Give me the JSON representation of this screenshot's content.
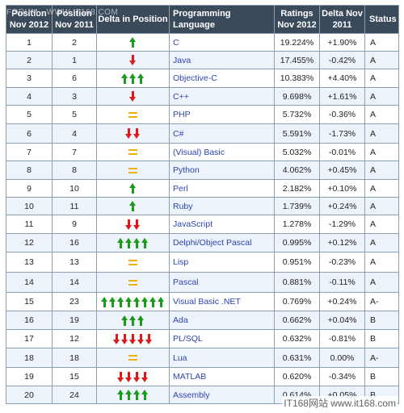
{
  "table": {
    "headers": {
      "pos2012": "Position Nov 2012",
      "pos2011": "Position Nov 2011",
      "delta": "Delta in Position",
      "language": "Programming Language",
      "ratings": "Ratings Nov 2012",
      "change": "Delta Nov 2011",
      "status": "Status"
    },
    "rows": [
      {
        "pos2012": "1",
        "pos2011": "2",
        "arrows": "up",
        "count": 1,
        "language": "C",
        "ratings": "19.224%",
        "change": "+1.90%",
        "status": "A"
      },
      {
        "pos2012": "2",
        "pos2011": "1",
        "arrows": "down",
        "count": 1,
        "language": "Java",
        "ratings": "17.455%",
        "change": "-0.42%",
        "status": "A"
      },
      {
        "pos2012": "3",
        "pos2011": "6",
        "arrows": "up",
        "count": 3,
        "language": "Objective-C",
        "ratings": "10.383%",
        "change": "+4.40%",
        "status": "A"
      },
      {
        "pos2012": "4",
        "pos2011": "3",
        "arrows": "down",
        "count": 1,
        "language": "C++",
        "ratings": "9.698%",
        "change": "+1.61%",
        "status": "A"
      },
      {
        "pos2012": "5",
        "pos2011": "5",
        "arrows": "same",
        "count": 1,
        "language": "PHP",
        "ratings": "5.732%",
        "change": "-0.36%",
        "status": "A"
      },
      {
        "pos2012": "6",
        "pos2011": "4",
        "arrows": "down",
        "count": 2,
        "language": "C#",
        "ratings": "5.591%",
        "change": "-1.73%",
        "status": "A"
      },
      {
        "pos2012": "7",
        "pos2011": "7",
        "arrows": "same",
        "count": 1,
        "language": "(Visual) Basic",
        "ratings": "5.032%",
        "change": "-0.01%",
        "status": "A"
      },
      {
        "pos2012": "8",
        "pos2011": "8",
        "arrows": "same",
        "count": 1,
        "language": "Python",
        "ratings": "4.062%",
        "change": "+0.45%",
        "status": "A"
      },
      {
        "pos2012": "9",
        "pos2011": "10",
        "arrows": "up",
        "count": 1,
        "language": "Perl",
        "ratings": "2.182%",
        "change": "+0.10%",
        "status": "A"
      },
      {
        "pos2012": "10",
        "pos2011": "11",
        "arrows": "up",
        "count": 1,
        "language": "Ruby",
        "ratings": "1.739%",
        "change": "+0.24%",
        "status": "A"
      },
      {
        "pos2012": "11",
        "pos2011": "9",
        "arrows": "down",
        "count": 2,
        "language": "JavaScript",
        "ratings": "1.278%",
        "change": "-1.29%",
        "status": "A"
      },
      {
        "pos2012": "12",
        "pos2011": "16",
        "arrows": "up",
        "count": 4,
        "language": "Delphi/Object Pascal",
        "ratings": "0.995%",
        "change": "+0.12%",
        "status": "A"
      },
      {
        "pos2012": "13",
        "pos2011": "13",
        "arrows": "same",
        "count": 1,
        "language": "Lisp",
        "ratings": "0.951%",
        "change": "-0.23%",
        "status": "A"
      },
      {
        "pos2012": "14",
        "pos2011": "14",
        "arrows": "same",
        "count": 1,
        "language": "Pascal",
        "ratings": "0.881%",
        "change": "-0.11%",
        "status": "A"
      },
      {
        "pos2012": "15",
        "pos2011": "23",
        "arrows": "up",
        "count": 8,
        "language": "Visual Basic .NET",
        "ratings": "0.769%",
        "change": "+0.24%",
        "status": "A-"
      },
      {
        "pos2012": "16",
        "pos2011": "19",
        "arrows": "up",
        "count": 3,
        "language": "Ada",
        "ratings": "0.662%",
        "change": "+0.04%",
        "status": "B"
      },
      {
        "pos2012": "17",
        "pos2011": "12",
        "arrows": "down",
        "count": 5,
        "language": "PL/SQL",
        "ratings": "0.632%",
        "change": "-0.81%",
        "status": "B"
      },
      {
        "pos2012": "18",
        "pos2011": "18",
        "arrows": "same",
        "count": 1,
        "language": "Lua",
        "ratings": "0.631%",
        "change": "0.00%",
        "status": "A-"
      },
      {
        "pos2012": "19",
        "pos2011": "15",
        "arrows": "down",
        "count": 4,
        "language": "MATLAB",
        "ratings": "0.620%",
        "change": "-0.34%",
        "status": "B"
      },
      {
        "pos2012": "20",
        "pos2011": "24",
        "arrows": "up",
        "count": 4,
        "language": "Assembly",
        "ratings": "0.614%",
        "change": "+0.05%",
        "status": "B"
      }
    ]
  },
  "watermark": {
    "top": "FORUM · WWW.IT168.COM",
    "bottom": "IT168网站 www.it168.com"
  },
  "colors": {
    "header_bg": "#3a4a5a",
    "language_text": "#2d44b0",
    "arrow_up": "#1c9a1c",
    "arrow_down": "#e01818",
    "equal_sign": "#f0b000"
  }
}
